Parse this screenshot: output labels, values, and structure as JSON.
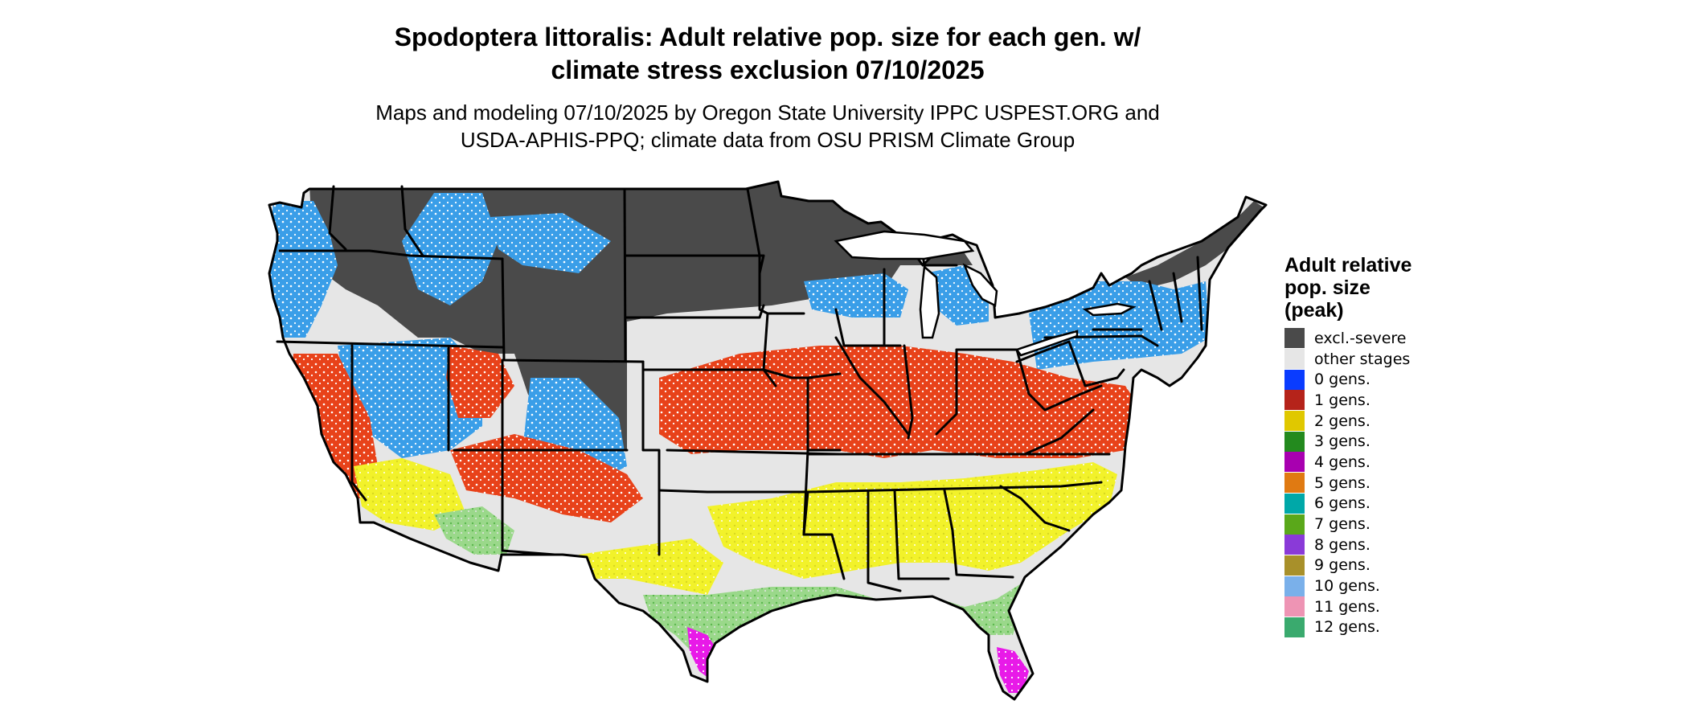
{
  "title_line1": "Spodoptera littoralis: Adult relative pop. size for each gen. w/",
  "title_line2": "climate stress exclusion 07/10/2025",
  "subtitle_line1": "Maps and modeling 07/10/2025 by Oregon State University IPPC USPEST.ORG and",
  "subtitle_line2": "USDA-APHIS-PPQ; climate data from OSU PRISM Climate Group",
  "legend": {
    "title_line1": "Adult relative",
    "title_line2": "pop. size",
    "title_line3": "(peak)",
    "items": [
      {
        "label": "excl.-severe",
        "color": "#4a4a4a"
      },
      {
        "label": "other stages",
        "color": "#e6e6e6"
      },
      {
        "label": "0 gens.",
        "color": "#0a3cff"
      },
      {
        "label": "1 gens.",
        "color": "#b5231a"
      },
      {
        "label": "2 gens.",
        "color": "#e0c800"
      },
      {
        "label": "3 gens.",
        "color": "#238a1e"
      },
      {
        "label": "4 gens.",
        "color": "#a800b0"
      },
      {
        "label": "5 gens.",
        "color": "#e07a12"
      },
      {
        "label": "6 gens.",
        "color": "#00a8a8"
      },
      {
        "label": "7 gens.",
        "color": "#5aa81a"
      },
      {
        "label": "8 gens.",
        "color": "#8a3ad8"
      },
      {
        "label": "9 gens.",
        "color": "#a8902a"
      },
      {
        "label": "10 gens.",
        "color": "#7ab0ea"
      },
      {
        "label": "11 gens.",
        "color": "#ee94b4"
      },
      {
        "label": "12 gens.",
        "color": "#3aaa6e"
      }
    ]
  },
  "map_colors": {
    "excluded": "#4a4a4a",
    "other_stages": "#e6e6e6",
    "cool_blue": "#3a9ee8",
    "one_gen_orange": "#e8421a",
    "two_gen_yellow": "#f2f22a",
    "light_green": "#9ad88a",
    "magenta": "#e81ae8",
    "state_borders": "#000000"
  }
}
